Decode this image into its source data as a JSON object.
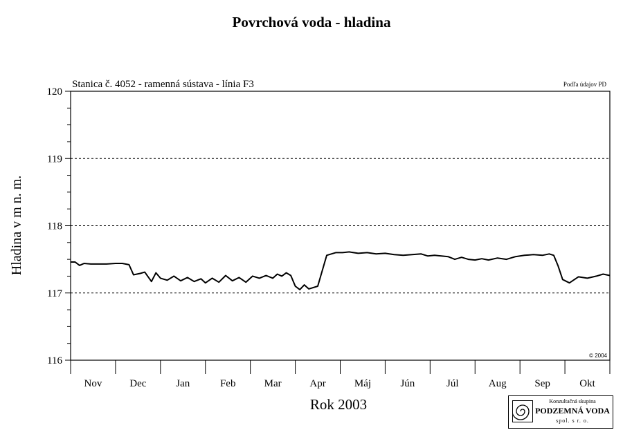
{
  "title": "Povrchová voda - hladina",
  "subtitle": "Stanica č. 4052 - ramenná sústava - línia F3",
  "source_note": "Podľa údajov PD",
  "copyright": "© 2004",
  "logo": {
    "line1": "Konzultačná skupina",
    "line2": "PODZEMNÁ VODA",
    "line3": "spol. s r. o."
  },
  "chart_data": {
    "type": "line",
    "title": "Povrchová voda - hladina",
    "subtitle": "Stanica č. 4052 - ramenná sústava - línia F3",
    "xlabel": "Rok 2003",
    "ylabel": "Hladina v m n. m.",
    "ylim": [
      116,
      120
    ],
    "yticks": [
      116,
      117,
      118,
      119,
      120
    ],
    "xlim_months": [
      0,
      12
    ],
    "month_labels": [
      "Nov",
      "Dec",
      "Jan",
      "Feb",
      "Mar",
      "Apr",
      "Máj",
      "Jún",
      "Júl",
      "Aug",
      "Sep",
      "Okt"
    ],
    "grid": {
      "dashed_y": [
        117,
        118,
        119
      ]
    },
    "series": [
      {
        "color": "#000000",
        "x": [
          0,
          0.1,
          0.2,
          0.3,
          0.45,
          0.6,
          0.8,
          1.0,
          1.15,
          1.3,
          1.4,
          1.55,
          1.65,
          1.8,
          1.9,
          2.0,
          2.15,
          2.3,
          2.45,
          2.6,
          2.75,
          2.9,
          3.0,
          3.15,
          3.3,
          3.45,
          3.6,
          3.75,
          3.9,
          4.05,
          4.2,
          4.35,
          4.5,
          4.6,
          4.7,
          4.8,
          4.9,
          5.0,
          5.1,
          5.2,
          5.3,
          5.5,
          5.7,
          5.9,
          6.05,
          6.2,
          6.4,
          6.6,
          6.8,
          7.0,
          7.2,
          7.4,
          7.6,
          7.8,
          7.95,
          8.1,
          8.25,
          8.4,
          8.55,
          8.7,
          8.85,
          9.0,
          9.15,
          9.3,
          9.5,
          9.7,
          9.9,
          10.1,
          10.3,
          10.5,
          10.65,
          10.75,
          10.85,
          10.95,
          11.1,
          11.3,
          11.5,
          11.7,
          11.85,
          12.0
        ],
        "y": [
          117.46,
          117.46,
          117.41,
          117.44,
          117.43,
          117.43,
          117.43,
          117.44,
          117.44,
          117.42,
          117.27,
          117.29,
          117.31,
          117.17,
          117.3,
          117.22,
          117.19,
          117.25,
          117.18,
          117.23,
          117.17,
          117.21,
          117.15,
          117.22,
          117.16,
          117.26,
          117.18,
          117.23,
          117.16,
          117.25,
          117.22,
          117.26,
          117.22,
          117.28,
          117.25,
          117.3,
          117.26,
          117.1,
          117.05,
          117.12,
          117.06,
          117.1,
          117.56,
          117.6,
          117.6,
          117.61,
          117.59,
          117.6,
          117.58,
          117.59,
          117.57,
          117.56,
          117.57,
          117.58,
          117.55,
          117.56,
          117.55,
          117.54,
          117.5,
          117.53,
          117.5,
          117.49,
          117.51,
          117.49,
          117.52,
          117.5,
          117.54,
          117.56,
          117.57,
          117.56,
          117.58,
          117.56,
          117.4,
          117.2,
          117.15,
          117.24,
          117.22,
          117.25,
          117.28,
          117.26
        ]
      }
    ]
  }
}
